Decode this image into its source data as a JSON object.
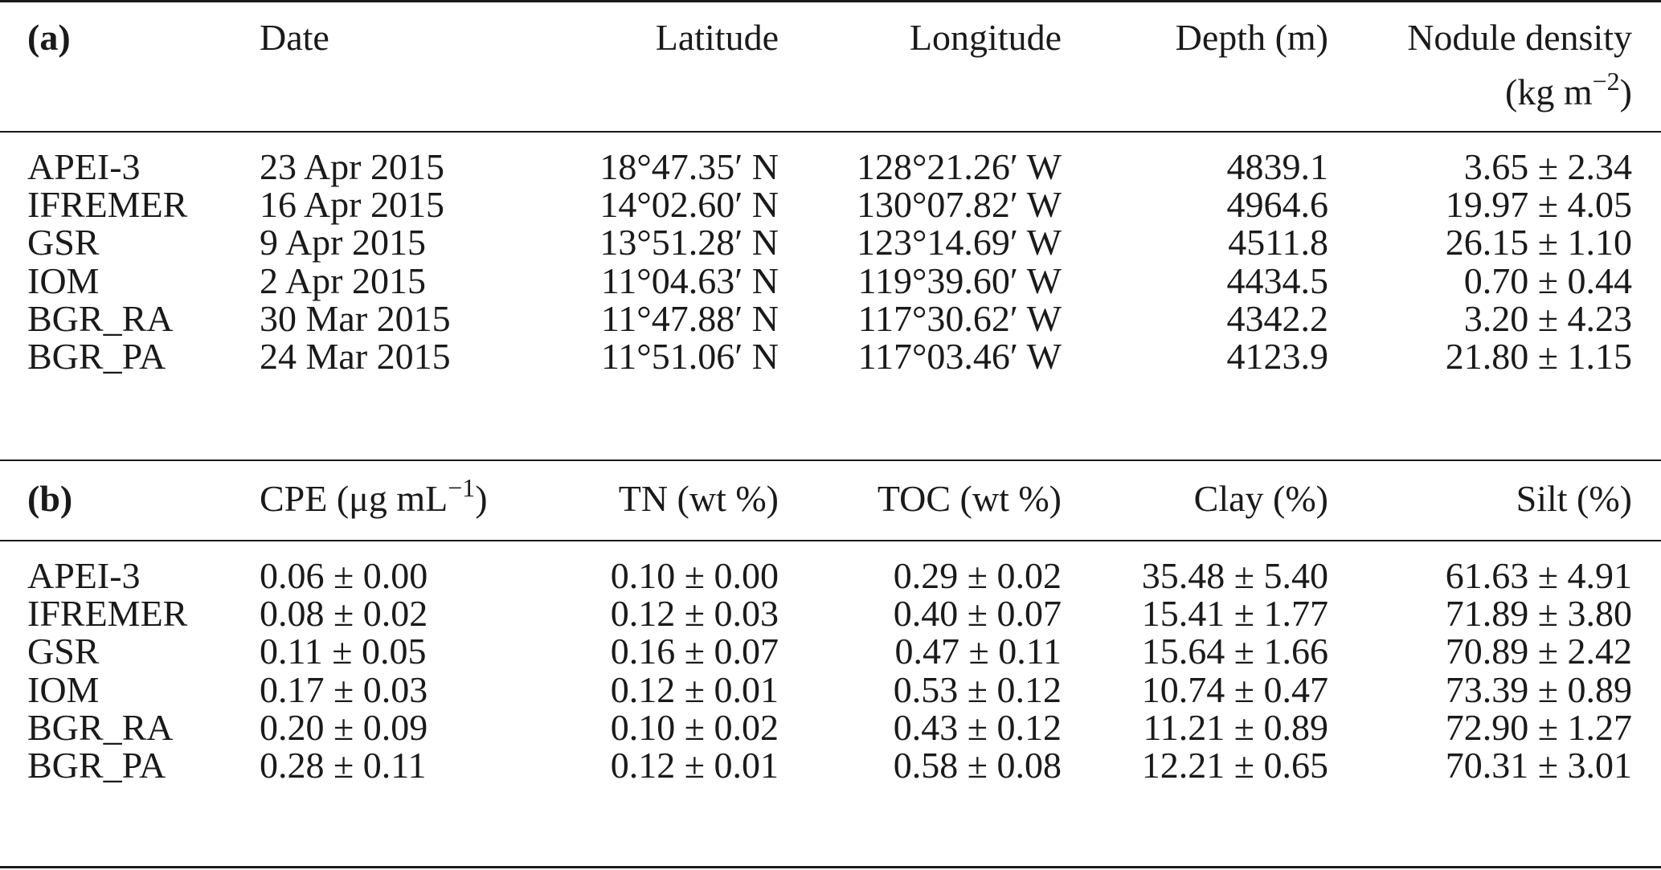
{
  "part_a": {
    "label": "(a)",
    "headers": {
      "date": "Date",
      "latitude": "Latitude",
      "longitude": "Longitude",
      "depth": "Depth (m)",
      "nodule_line1": "Nodule density",
      "nodule_line2_pre": "(kg m",
      "nodule_line2_sup": "−2",
      "nodule_line2_post": ")"
    },
    "rows": [
      {
        "site": "APEI-3",
        "date": "23 Apr 2015",
        "lat": "18°47.35′ N",
        "lon": "128°21.26′ W",
        "depth": "4839.1",
        "nodule": "3.65 ± 2.34"
      },
      {
        "site": "IFREMER",
        "date": "16 Apr 2015",
        "lat": "14°02.60′ N",
        "lon": "130°07.82′ W",
        "depth": "4964.6",
        "nodule": "19.97 ± 4.05"
      },
      {
        "site": "GSR",
        "date": "9 Apr 2015",
        "lat": "13°51.28′ N",
        "lon": "123°14.69′ W",
        "depth": "4511.8",
        "nodule": "26.15 ± 1.10"
      },
      {
        "site": "IOM",
        "date": "2 Apr 2015",
        "lat": "11°04.63′ N",
        "lon": "119°39.60′ W",
        "depth": "4434.5",
        "nodule": "0.70 ± 0.44"
      },
      {
        "site": "BGR_RA",
        "date": "30 Mar 2015",
        "lat": "11°47.88′ N",
        "lon": "117°30.62′ W",
        "depth": "4342.2",
        "nodule": "3.20 ± 4.23"
      },
      {
        "site": "BGR_PA",
        "date": "24 Mar 2015",
        "lat": "11°51.06′ N",
        "lon": "117°03.46′ W",
        "depth": "4123.9",
        "nodule": "21.80 ± 1.15"
      }
    ]
  },
  "part_b": {
    "label": "(b)",
    "headers": {
      "cpe_pre": "CPE (μg mL",
      "cpe_sup": "−1",
      "cpe_post": ")",
      "tn": "TN (wt %)",
      "toc": "TOC (wt %)",
      "clay": "Clay (%)",
      "silt": "Silt (%)"
    },
    "rows": [
      {
        "site": "APEI-3",
        "cpe": "0.06 ± 0.00",
        "tn": "0.10 ± 0.00",
        "toc": "0.29 ± 0.02",
        "clay": "35.48 ± 5.40",
        "silt": "61.63 ± 4.91"
      },
      {
        "site": "IFREMER",
        "cpe": "0.08 ± 0.02",
        "tn": "0.12 ± 0.03",
        "toc": "0.40 ± 0.07",
        "clay": "15.41 ± 1.77",
        "silt": "71.89 ± 3.80"
      },
      {
        "site": "GSR",
        "cpe": "0.11 ± 0.05",
        "tn": "0.16 ± 0.07",
        "toc": "0.47 ± 0.11",
        "clay": "15.64 ± 1.66",
        "silt": "70.89 ± 2.42"
      },
      {
        "site": "IOM",
        "cpe": "0.17 ± 0.03",
        "tn": "0.12 ± 0.01",
        "toc": "0.53 ± 0.12",
        "clay": "10.74 ± 0.47",
        "silt": "73.39 ± 0.89"
      },
      {
        "site": "BGR_RA",
        "cpe": "0.20 ± 0.09",
        "tn": "0.10 ± 0.02",
        "toc": "0.43 ± 0.12",
        "clay": "11.21 ± 0.89",
        "silt": "72.90 ± 1.27"
      },
      {
        "site": "BGR_PA",
        "cpe": "0.28 ± 0.11",
        "tn": "0.12 ± 0.01",
        "toc": "0.58 ± 0.08",
        "clay": "12.21 ± 0.65",
        "silt": "70.31 ± 3.01"
      }
    ]
  }
}
